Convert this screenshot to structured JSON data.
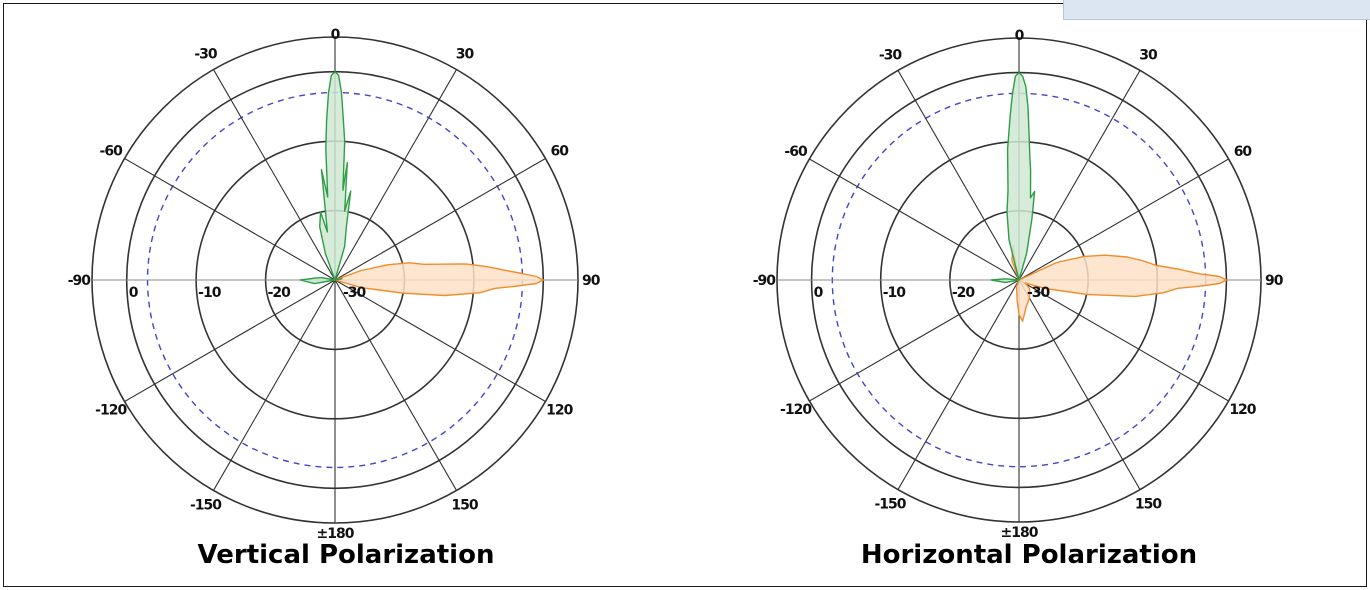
{
  "page": {
    "background": "#ffffff",
    "border_color": "#1a1a1a",
    "corner_tab_color": "#dbe6f2"
  },
  "chart_data": [
    {
      "type": "polar",
      "title": "Vertical Polarization",
      "angle_ticks": [
        "0",
        "30",
        "60",
        "90",
        "120",
        "150",
        "±180",
        "-150",
        "-120",
        "-90",
        "-60",
        "-30"
      ],
      "radial_ticks": [
        "0",
        "-10",
        "-20",
        "-30"
      ],
      "radial_range": [
        -30,
        5
      ],
      "reference_circle_db": -3,
      "grid": true,
      "colors": {
        "grid": "#333333",
        "reference": "#4444cc",
        "series_a": "#2e9e44",
        "series_a_fill": "#cfe8d2",
        "series_b": "#f28c28",
        "series_b_fill": "#fde1c8"
      },
      "series": [
        {
          "color": "green",
          "points": [
            [
              -25,
              -30
            ],
            [
              -20,
              -26
            ],
            [
              -16,
              -22
            ],
            [
              -12,
              -20
            ],
            [
              -9,
              -23
            ],
            [
              -7,
              -14
            ],
            [
              -5,
              -18
            ],
            [
              -4,
              -11
            ],
            [
              -3,
              -7
            ],
            [
              -2,
              -3
            ],
            [
              -1,
              -0.5
            ],
            [
              0,
              0
            ],
            [
              1,
              -0.5
            ],
            [
              2,
              -3
            ],
            [
              3,
              -7
            ],
            [
              4,
              -10
            ],
            [
              5,
              -17
            ],
            [
              6,
              -13
            ],
            [
              8,
              -20
            ],
            [
              10,
              -17
            ],
            [
              12,
              -22
            ],
            [
              16,
              -25
            ],
            [
              22,
              -30
            ],
            [
              30,
              -30
            ],
            [
              60,
              -30
            ],
            [
              80,
              -29
            ],
            [
              110,
              -30
            ],
            [
              150,
              -30
            ],
            [
              180,
              -30
            ],
            [
              -150,
              -30
            ],
            [
              -120,
              -30
            ],
            [
              -100,
              -27
            ],
            [
              -90,
              -25
            ],
            [
              -85,
              -27
            ],
            [
              -80,
              -28
            ],
            [
              -60,
              -30
            ],
            [
              -40,
              -30
            ]
          ]
        },
        {
          "color": "orange",
          "points": [
            [
              60,
              -30
            ],
            [
              70,
              -26
            ],
            [
              74,
              -22
            ],
            [
              77,
              -19
            ],
            [
              80,
              -17
            ],
            [
              83,
              -11
            ],
            [
              85,
              -8
            ],
            [
              87,
              -5
            ],
            [
              88,
              -3
            ],
            [
              89,
              -1
            ],
            [
              90,
              0
            ],
            [
              91,
              -1
            ],
            [
              92,
              -4
            ],
            [
              93,
              -7
            ],
            [
              95,
              -9
            ],
            [
              98,
              -14
            ],
            [
              101,
              -20
            ],
            [
              106,
              -26
            ],
            [
              115,
              -30
            ],
            [
              160,
              -30
            ],
            [
              200,
              -30
            ],
            [
              -150,
              -30
            ],
            [
              -120,
              -30
            ],
            [
              -100,
              -30
            ],
            [
              -60,
              -30
            ],
            [
              -20,
              -30
            ],
            [
              20,
              -30
            ],
            [
              40,
              -30
            ]
          ]
        }
      ]
    },
    {
      "type": "polar",
      "title": "Horizontal Polarization",
      "angle_ticks": [
        "0",
        "30",
        "60",
        "90",
        "120",
        "150",
        "±180",
        "-150",
        "-120",
        "-90",
        "-60",
        "-30"
      ],
      "radial_ticks": [
        "0",
        "-10",
        "-20",
        "-30"
      ],
      "radial_range": [
        -30,
        5
      ],
      "reference_circle_db": -3,
      "grid": true,
      "colors": {
        "grid": "#333333",
        "reference": "#4444cc",
        "series_a": "#2e9e44",
        "series_a_fill": "#cfe8d2",
        "series_b": "#f28c28",
        "series_b_fill": "#fde1c8"
      },
      "series": [
        {
          "color": "green",
          "points": [
            [
              -20,
              -30
            ],
            [
              -14,
              -24
            ],
            [
              -10,
              -20
            ],
            [
              -7,
              -17
            ],
            [
              -5,
              -11
            ],
            [
              -3,
              -6
            ],
            [
              -2,
              -3
            ],
            [
              -1,
              -0.5
            ],
            [
              0,
              0
            ],
            [
              1,
              -0.5
            ],
            [
              2,
              -2
            ],
            [
              3,
              -5
            ],
            [
              4,
              -9
            ],
            [
              5,
              -12
            ],
            [
              6,
              -14
            ],
            [
              8,
              -18
            ],
            [
              10,
              -17
            ],
            [
              12,
              -21
            ],
            [
              16,
              -26
            ],
            [
              22,
              -30
            ],
            [
              40,
              -30
            ],
            [
              60,
              -30
            ],
            [
              90,
              -30
            ],
            [
              120,
              -30
            ],
            [
              160,
              -30
            ],
            [
              -160,
              -30
            ],
            [
              -130,
              -30
            ],
            [
              -100,
              -28
            ],
            [
              -90,
              -26
            ],
            [
              -85,
              -28
            ],
            [
              -75,
              -30
            ],
            [
              -50,
              -30
            ],
            [
              -30,
              -30
            ]
          ]
        },
        {
          "color": "orange",
          "points": [
            [
              -20,
              -27
            ],
            [
              -10,
              -25
            ],
            [
              0,
              -30
            ],
            [
              30,
              -30
            ],
            [
              55,
              -30
            ],
            [
              65,
              -24
            ],
            [
              70,
              -20
            ],
            [
              74,
              -17
            ],
            [
              78,
              -14
            ],
            [
              81,
              -12
            ],
            [
              84,
              -10
            ],
            [
              86,
              -7
            ],
            [
              88,
              -4
            ],
            [
              89,
              -1
            ],
            [
              90,
              0
            ],
            [
              91,
              -1
            ],
            [
              92,
              -4
            ],
            [
              93,
              -7
            ],
            [
              95,
              -9
            ],
            [
              98,
              -13
            ],
            [
              102,
              -20
            ],
            [
              108,
              -26
            ],
            [
              115,
              -29
            ],
            [
              130,
              -28
            ],
            [
              150,
              -27
            ],
            [
              165,
              -26
            ],
            [
              175,
              -24
            ],
            [
              180,
              -25
            ],
            [
              -175,
              -27
            ],
            [
              -160,
              -29
            ],
            [
              -120,
              -30
            ],
            [
              -90,
              -30
            ],
            [
              -60,
              -30
            ],
            [
              -40,
              -30
            ]
          ]
        }
      ]
    }
  ]
}
